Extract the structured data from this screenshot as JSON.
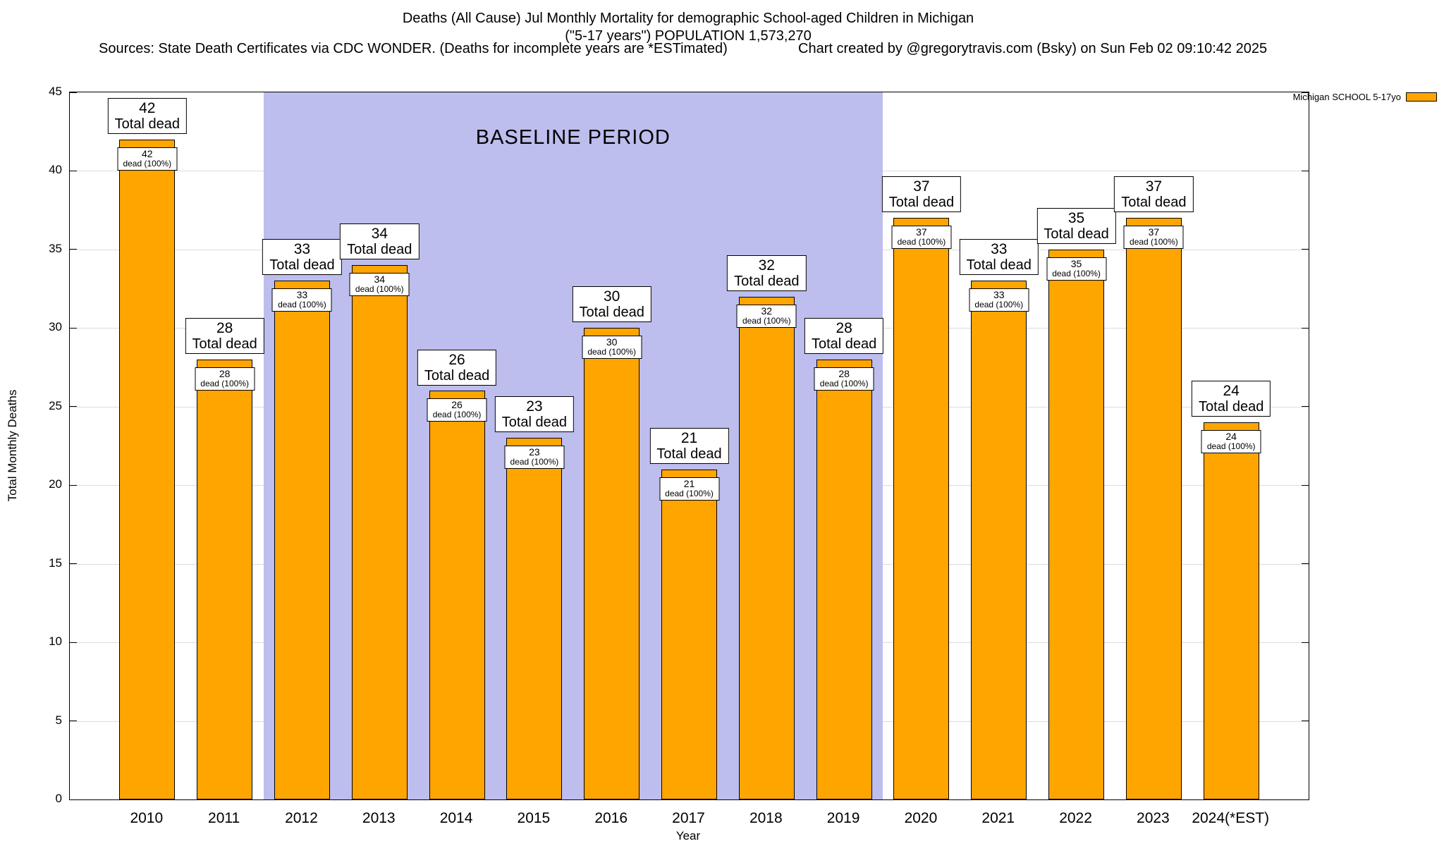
{
  "header": {
    "title_line1": "Deaths (All Cause) Jul Monthly Mortality for demographic School-aged Children in Michigan",
    "title_line2": "(\"5-17 years\") POPULATION 1,573,270",
    "sources": "Sources: State Death Certificates via CDC WONDER. (Deaths for incomplete years are *ESTimated)",
    "credit": "Chart created by @gregorytravis.com (Bsky) on Sun Feb 02 09:10:42 2025"
  },
  "legend": {
    "label": "Michigan SCHOOL 5-17yo",
    "swatch_color": "#ffa500"
  },
  "chart_data": {
    "type": "bar",
    "title": "Deaths (All Cause) Jul Monthly Mortality for demographic School-aged Children in Michigan",
    "subtitle": "(\"5-17 years\") POPULATION 1,573,270",
    "xlabel": "Year",
    "ylabel": "Total Monthly Deaths",
    "ylim": [
      0,
      45
    ],
    "ytick_interval": 5,
    "grid": true,
    "legend_position": "top-right",
    "categories": [
      "2010",
      "2011",
      "2012",
      "2013",
      "2014",
      "2015",
      "2016",
      "2017",
      "2018",
      "2019",
      "2020",
      "2021",
      "2022",
      "2023",
      "2024(*EST)"
    ],
    "values": [
      42,
      28,
      33,
      34,
      26,
      23,
      30,
      21,
      32,
      28,
      37,
      33,
      35,
      37,
      24
    ],
    "series_name": "Michigan SCHOOL 5-17yo",
    "bar_color": "#ffa500",
    "bar_top_label_suffix": "Total dead",
    "bar_inner_label_suffix": "dead (100%)",
    "baseline": {
      "label": "BASELINE PERIOD",
      "start_category": "2012",
      "end_category": "2019",
      "color": "#bdbdee"
    }
  }
}
